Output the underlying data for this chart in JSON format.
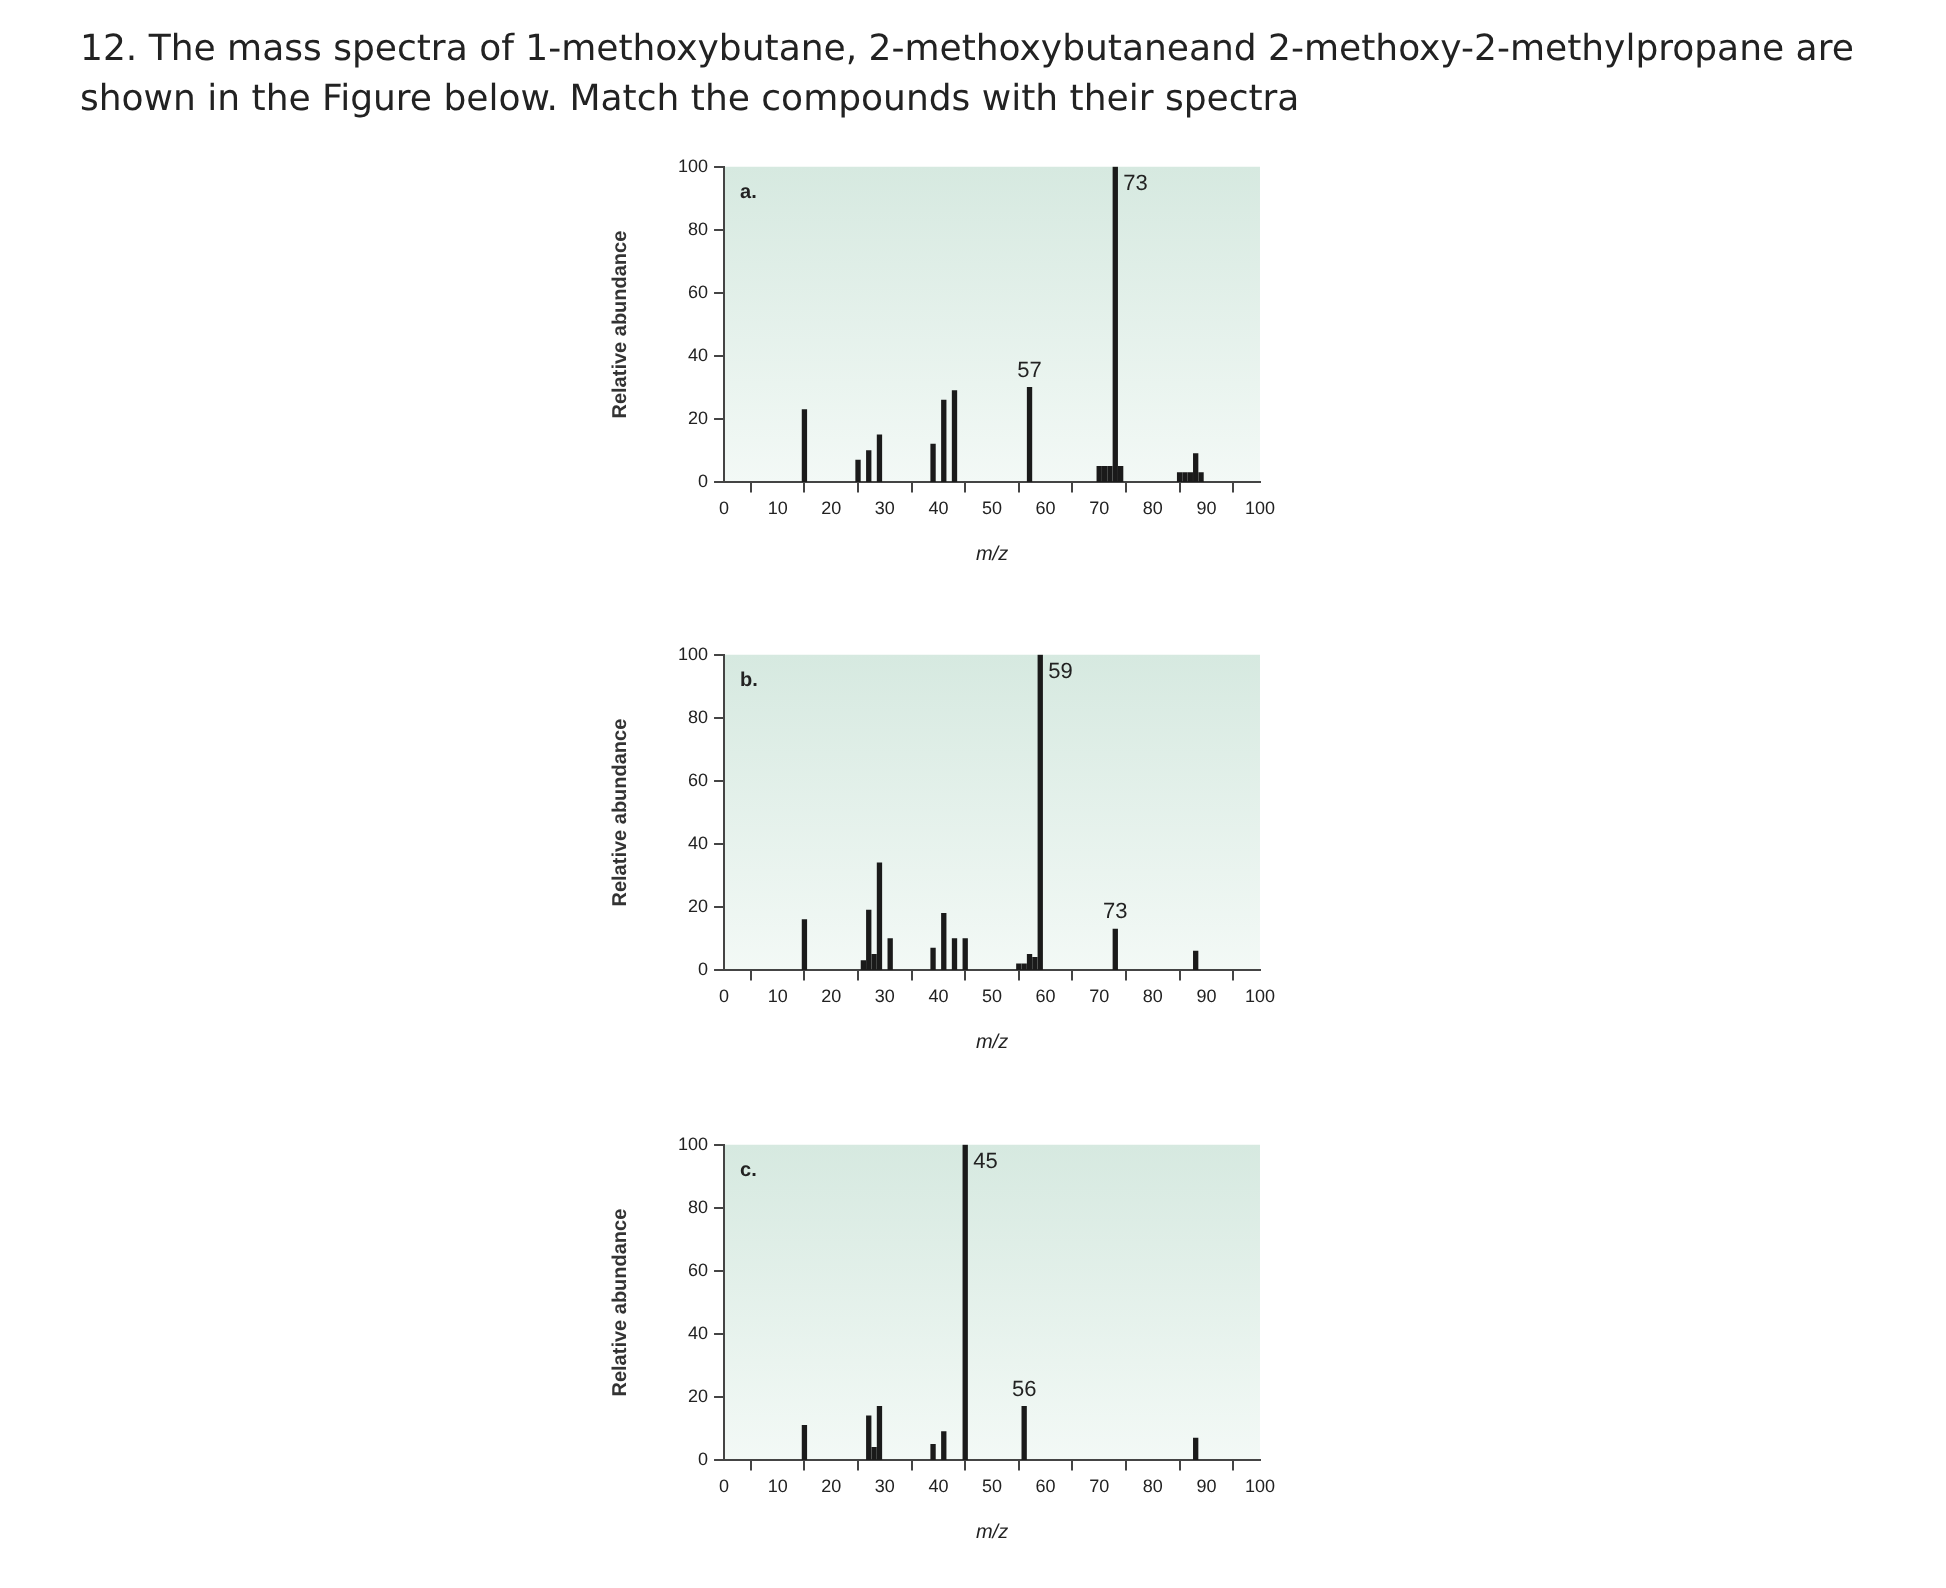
{
  "chart_data": [
    {
      "type": "bar",
      "title": "12. The mass spectra of 1-methoxybutane, 2-methoxybutaneand 2-methoxy-2-methylpropane are shown in the Figure below. Match the compounds with their spectra",
      "xlabel": "m/z",
      "ylabel": "Relative abundance",
      "color": "#1a1a1a",
      "x": [
        15,
        25,
        27,
        29,
        39,
        41,
        43,
        57,
        70,
        71,
        72,
        73,
        74,
        85,
        86,
        87,
        88,
        89
      ],
      "values": [
        23,
        7,
        10,
        15,
        12,
        26,
        29,
        30,
        5,
        5,
        5,
        100,
        5,
        3,
        3,
        3,
        9,
        3
      ],
      "xlim": [
        0,
        100
      ],
      "xticks": [
        0,
        10,
        20,
        30,
        40,
        50,
        60,
        70,
        80,
        90,
        100
      ],
      "ylim": [
        0,
        100
      ],
      "yticks": [
        0,
        20,
        40,
        60,
        80,
        100
      ],
      "grid": false,
      "legend": false,
      "annotations": [
        "a.",
        {
          "text": "57",
          "x": 57,
          "y": 30
        },
        {
          "text": "73",
          "x": 73,
          "y": 100
        }
      ]
    },
    {
      "type": "bar",
      "xlabel": "m/z",
      "ylabel": "Relative abundance",
      "color": "#1a1a1a",
      "x": [
        15,
        26,
        27,
        28,
        29,
        31,
        39,
        41,
        43,
        45,
        55,
        56,
        57,
        58,
        59,
        73,
        88
      ],
      "values": [
        16,
        3,
        19,
        5,
        34,
        10,
        7,
        18,
        10,
        10,
        2,
        2,
        5,
        4,
        100,
        13,
        6
      ],
      "xlim": [
        0,
        100
      ],
      "xticks": [
        0,
        10,
        20,
        30,
        40,
        50,
        60,
        70,
        80,
        90,
        100
      ],
      "ylim": [
        0,
        100
      ],
      "yticks": [
        0,
        20,
        40,
        60,
        80,
        100
      ],
      "grid": false,
      "legend": false,
      "annotations": [
        "b.",
        {
          "text": "59",
          "x": 59,
          "y": 100
        },
        {
          "text": "73",
          "x": 73,
          "y": 13
        }
      ]
    },
    {
      "type": "bar",
      "xlabel": "m/z",
      "ylabel": "Relative abundance",
      "color": "#1a1a1a",
      "x": [
        15,
        27,
        28,
        29,
        39,
        41,
        45,
        56,
        88
      ],
      "values": [
        11,
        14,
        4,
        17,
        5,
        9,
        100,
        17,
        7
      ],
      "xlim": [
        0,
        100
      ],
      "xticks": [
        0,
        10,
        20,
        30,
        40,
        50,
        60,
        70,
        80,
        90,
        100
      ],
      "ylim": [
        0,
        100
      ],
      "yticks": [
        0,
        20,
        40,
        60,
        80,
        100
      ],
      "grid": false,
      "legend": false,
      "annotations": [
        "c.",
        {
          "text": "45",
          "x": 45,
          "y": 100
        },
        {
          "text": "56",
          "x": 56,
          "y": 17
        }
      ]
    }
  ]
}
